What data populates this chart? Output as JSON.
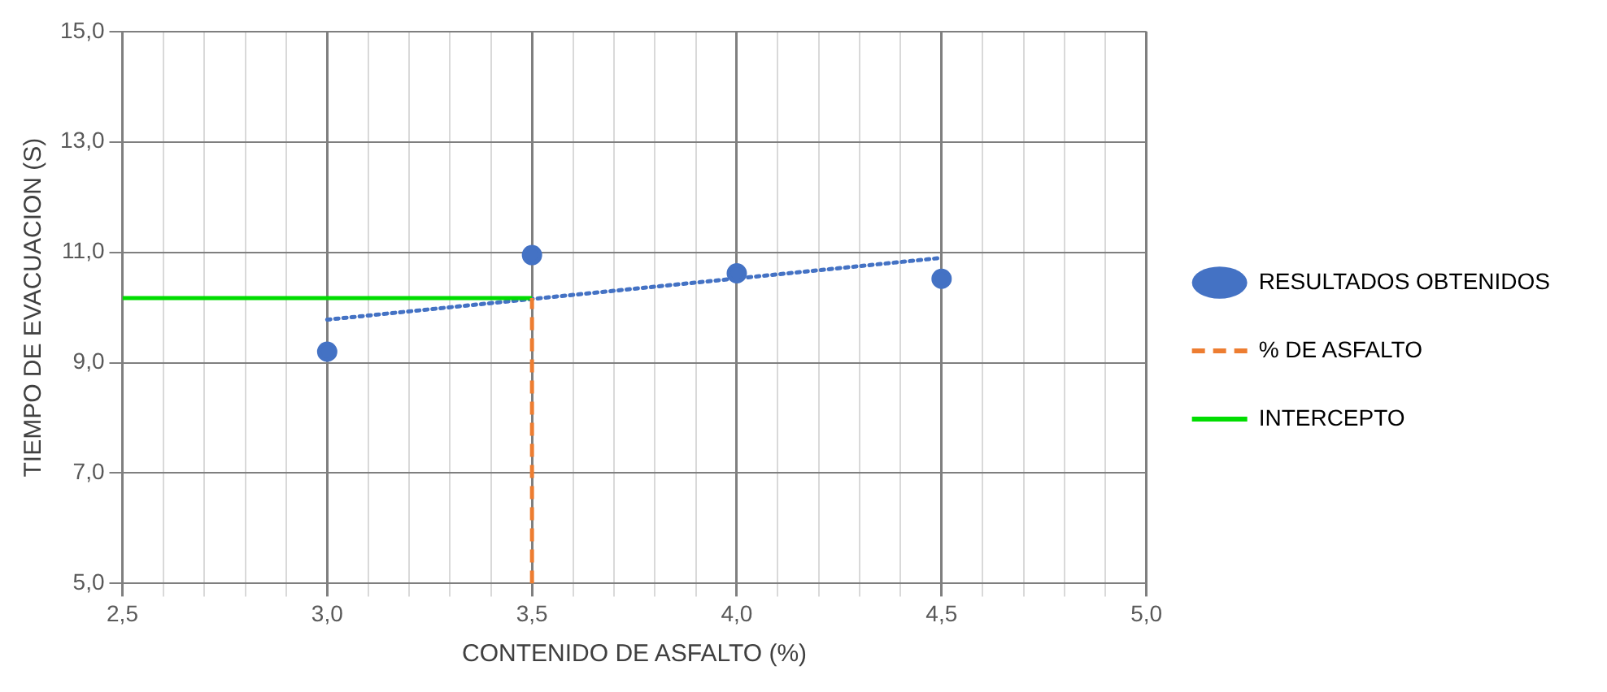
{
  "chart_data": {
    "type": "scatter",
    "xlabel": "CONTENIDO DE ASFALTO (%)",
    "ylabel": "TIEMPO DE EVACUACION (S)",
    "xlim": [
      2.5,
      5.0
    ],
    "xticks": [
      {
        "value": 2.5,
        "label": "2,5"
      },
      {
        "value": 2.6,
        "label": null
      },
      {
        "value": 2.7,
        "label": null
      },
      {
        "value": 2.8,
        "label": null
      },
      {
        "value": 2.9,
        "label": null
      },
      {
        "value": 3.0,
        "label": "3,0"
      },
      {
        "value": 3.1,
        "label": null
      },
      {
        "value": 3.2,
        "label": null
      },
      {
        "value": 3.3,
        "label": null
      },
      {
        "value": 3.4,
        "label": null
      },
      {
        "value": 3.5,
        "label": "3,5"
      },
      {
        "value": 3.6,
        "label": null
      },
      {
        "value": 3.7,
        "label": null
      },
      {
        "value": 3.8,
        "label": null
      },
      {
        "value": 3.9,
        "label": null
      },
      {
        "value": 4.0,
        "label": "4,0"
      },
      {
        "value": 4.1,
        "label": null
      },
      {
        "value": 4.2,
        "label": null
      },
      {
        "value": 4.3,
        "label": null
      },
      {
        "value": 4.4,
        "label": null
      },
      {
        "value": 4.5,
        "label": "4,5"
      },
      {
        "value": 4.6,
        "label": null
      },
      {
        "value": 4.7,
        "label": null
      },
      {
        "value": 4.8,
        "label": null
      },
      {
        "value": 4.9,
        "label": null
      },
      {
        "value": 5.0,
        "label": "5,0"
      }
    ],
    "ylim": [
      5,
      15
    ],
    "yticks": [
      {
        "value": 5,
        "label": "5,0"
      },
      {
        "value": 7,
        "label": "7,0"
      },
      {
        "value": 9,
        "label": "9,0"
      },
      {
        "value": 11,
        "label": "11,0"
      },
      {
        "value": 13,
        "label": "13,0"
      },
      {
        "value": 15,
        "label": "15,0"
      }
    ],
    "grid": true,
    "legend": "right",
    "series": [
      {
        "name": "RESULTADOS OBTENIDOS",
        "type": "scatter",
        "color": "#4472c4",
        "marker": "circle",
        "x": [
          3.0,
          3.5,
          4.0,
          4.5
        ],
        "values": [
          9.2,
          10.95,
          10.62,
          10.52
        ]
      },
      {
        "name": "% DE ASFALTO",
        "type": "line",
        "color": "#ed7d31",
        "line_style": "dashed",
        "marker": "none",
        "x": [
          3.5,
          3.5
        ],
        "values": [
          5,
          10.17
        ]
      },
      {
        "name": "INTERCEPTO",
        "type": "line",
        "color": "#00dd00",
        "line_style": "solid",
        "marker": "none",
        "x": [
          2.5,
          3.5
        ],
        "values": [
          10.17,
          10.17
        ]
      },
      {
        "type": "line",
        "color": "#4472c4",
        "line_style": "dotted",
        "marker": "none",
        "x": [
          3.0,
          4.5
        ],
        "values": [
          9.78,
          10.9
        ]
      }
    ]
  }
}
